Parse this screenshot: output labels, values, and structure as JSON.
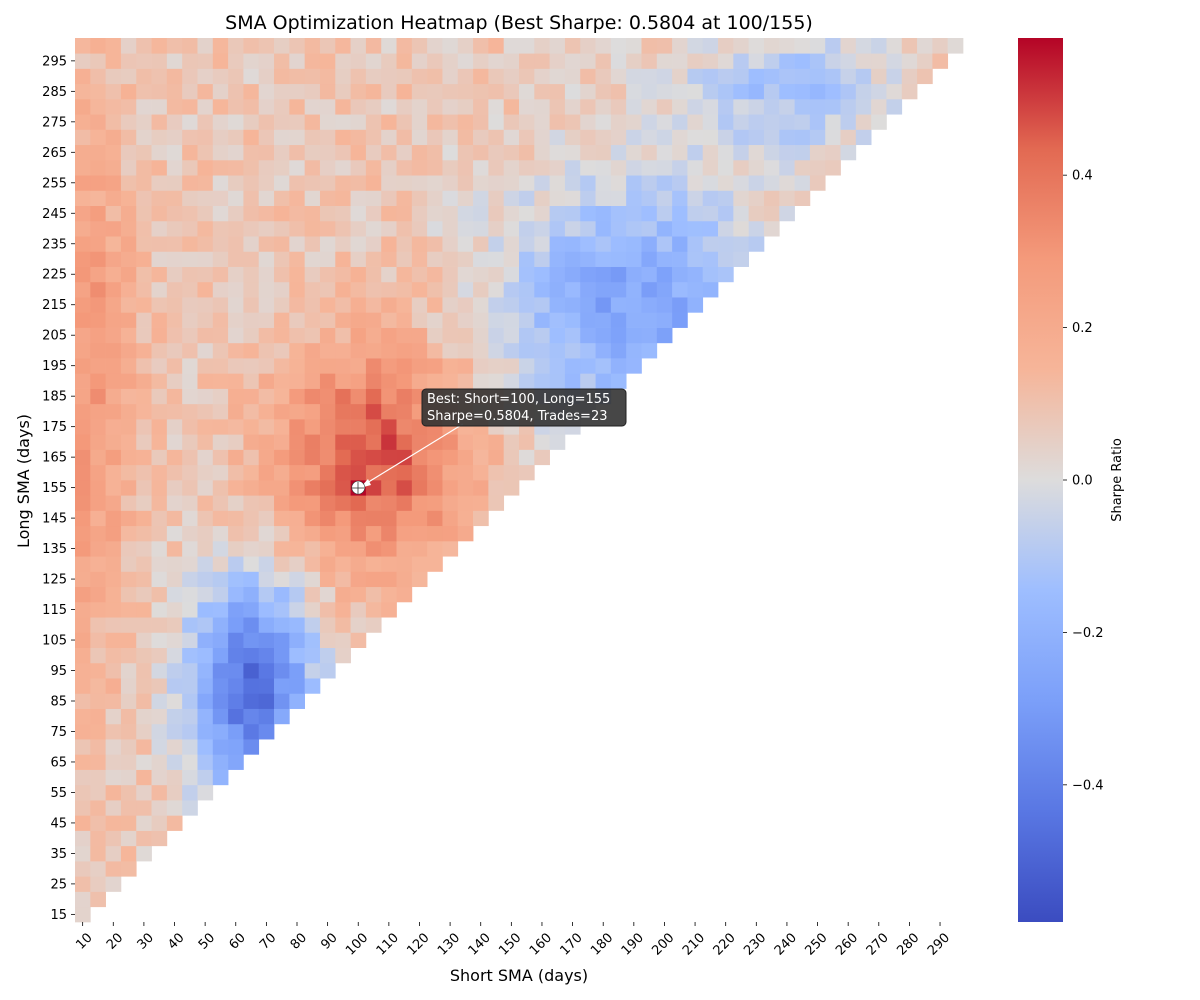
{
  "chart_data": {
    "type": "heatmap",
    "title": "SMA Optimization Heatmap (Best Sharpe: 0.5804 at 100/155)",
    "xlabel": "Short SMA (days)",
    "ylabel": "Long SMA (days)",
    "x_start": 10,
    "x_step": 5,
    "x_count": 58,
    "y_start": 15,
    "y_step": 5,
    "y_count": 58,
    "x_ticks": [
      "10",
      "20",
      "30",
      "40",
      "50",
      "60",
      "70",
      "80",
      "90",
      "100",
      "110",
      "120",
      "130",
      "140",
      "150",
      "160",
      "170",
      "180",
      "190",
      "200",
      "210",
      "220",
      "230",
      "240",
      "250",
      "260",
      "270",
      "280",
      "290"
    ],
    "y_ticks": [
      "15",
      "25",
      "35",
      "45",
      "55",
      "65",
      "75",
      "85",
      "95",
      "105",
      "115",
      "125",
      "135",
      "145",
      "155",
      "165",
      "175",
      "185",
      "195",
      "205",
      "215",
      "225",
      "235",
      "245",
      "255",
      "265",
      "275",
      "285",
      "295"
    ],
    "colormap": "coolwarm",
    "vmin": -0.58,
    "vmax": 0.58,
    "colorbar": {
      "label": "Sharpe Ratio",
      "ticks": [
        "−0.4",
        "−0.2",
        "0.0",
        "0.2",
        "0.4"
      ],
      "tick_values": [
        -0.4,
        -0.2,
        0.0,
        0.2,
        0.4
      ]
    },
    "best": {
      "short": 100,
      "long": 155,
      "sharpe": 0.5804,
      "trades": 23
    },
    "annotation": {
      "line1": "Best: Short=100, Long=155",
      "line2": "Sharpe=0.5804, Trades=23"
    },
    "colors": {
      "marker": "#ffffff",
      "annotation_bg": "#333333",
      "arrow": "#ffffff"
    }
  }
}
